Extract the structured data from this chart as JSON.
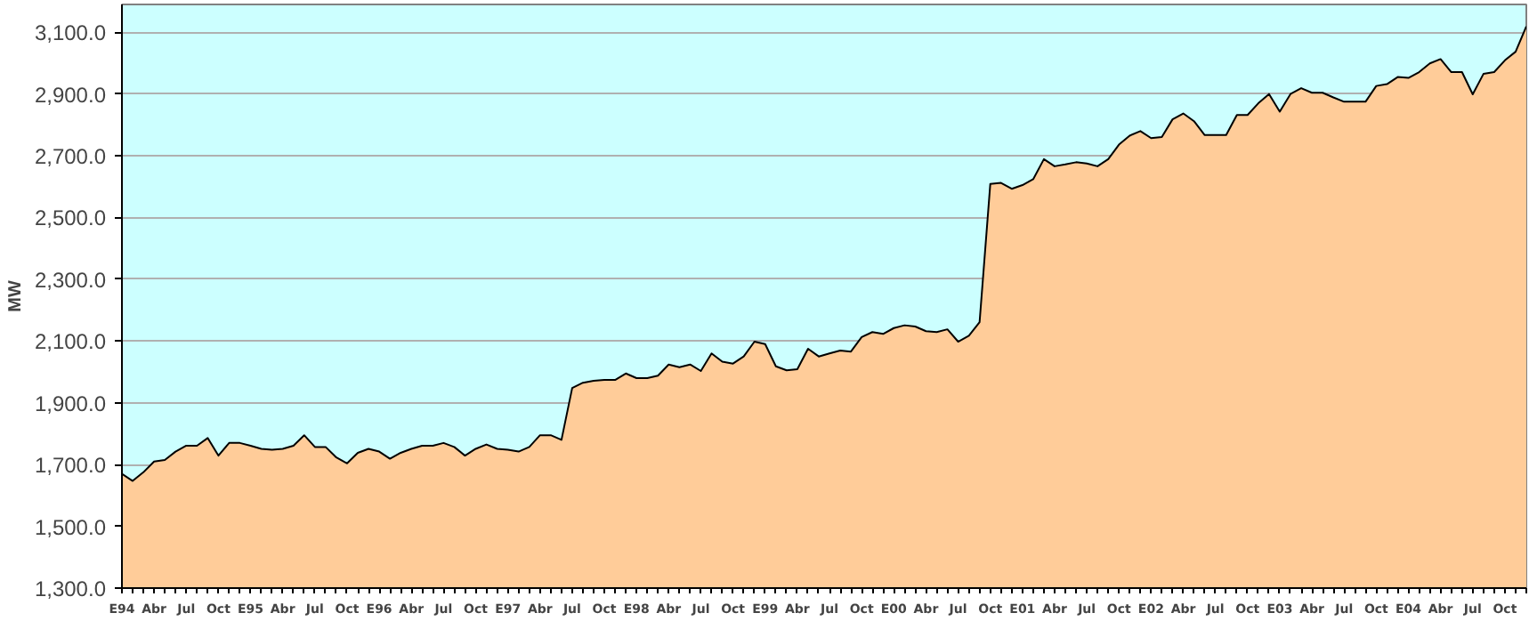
{
  "chart_data": {
    "type": "area",
    "ylabel": "MW",
    "categories": [
      "E94",
      null,
      null,
      "Abr",
      null,
      null,
      "Jul",
      null,
      null,
      "Oct",
      null,
      null,
      "E95",
      null,
      null,
      "Abr",
      null,
      null,
      "Jul",
      null,
      null,
      "Oct",
      null,
      null,
      "E96",
      null,
      null,
      "Abr",
      null,
      null,
      "Jul",
      null,
      null,
      "Oct",
      null,
      null,
      "E97",
      null,
      null,
      "Abr",
      null,
      null,
      "Jul",
      null,
      null,
      "Oct",
      null,
      null,
      "E98",
      null,
      null,
      "Abr",
      null,
      null,
      "Jul",
      null,
      null,
      "Oct",
      null,
      null,
      "E99",
      null,
      null,
      "Abr",
      null,
      null,
      "Jul",
      null,
      null,
      "Oct",
      null,
      null,
      "E00",
      null,
      null,
      "Abr",
      null,
      null,
      "Jul",
      null,
      null,
      "Oct",
      null,
      null,
      "E01",
      null,
      null,
      "Abr",
      null,
      null,
      "Jul",
      null,
      null,
      "Oct",
      null,
      null,
      "E02",
      null,
      null,
      "Abr",
      null,
      null,
      "Jul",
      null,
      null,
      "Oct",
      null,
      null,
      "E03",
      null,
      null,
      "Abr",
      null,
      null,
      "Jul",
      null,
      null,
      "Oct",
      null,
      null,
      "E04",
      null,
      null,
      "Abr",
      null,
      null,
      "Jul",
      null,
      null,
      "Oct",
      null,
      null
    ],
    "series": [
      {
        "color": "#ffcc99",
        "values": [
          1670,
          1647,
          1675,
          1710,
          1715,
          1742,
          1761,
          1761,
          1786,
          1729,
          1770,
          1770,
          1761,
          1751,
          1748,
          1751,
          1761,
          1795,
          1757,
          1757,
          1723,
          1704,
          1738,
          1751,
          1742,
          1719,
          1738,
          1751,
          1761,
          1761,
          1770,
          1757,
          1729,
          1751,
          1765,
          1751,
          1748,
          1742,
          1757,
          1795,
          1795,
          1780,
          1948,
          1965,
          1971,
          1974,
          1974,
          1995,
          1980,
          1980,
          1988,
          2024,
          2015,
          2024,
          2003,
          2060,
          2033,
          2027,
          2050,
          2098,
          2090,
          2018,
          2005,
          2009,
          2075,
          2050,
          2060,
          2069,
          2066,
          2113,
          2129,
          2123,
          2142,
          2151,
          2147,
          2132,
          2129,
          2138,
          2098,
          2117,
          2161,
          2609,
          2612,
          2593,
          2605,
          2624,
          2689,
          2666,
          2672,
          2679,
          2675,
          2666,
          2689,
          2736,
          2765,
          2780,
          2757,
          2761,
          2818,
          2837,
          2812,
          2767,
          2767,
          2767,
          2832,
          2832,
          2870,
          2900,
          2843,
          2900,
          2919,
          2904,
          2904,
          2889,
          2875,
          2875,
          2875,
          2926,
          2932,
          2955,
          2952,
          2971,
          2999,
          3013,
          2971,
          2971,
          2899,
          2965,
          2971,
          3009,
          3037,
          3119
        ]
      }
    ],
    "ylim": [
      1300,
      3190
    ],
    "yticks": [
      {
        "value": 1300,
        "label": "1,300.0"
      },
      {
        "value": 1500,
        "label": "1,500.0"
      },
      {
        "value": 1700,
        "label": "1,700.0"
      },
      {
        "value": 1900,
        "label": "1,900.0"
      },
      {
        "value": 2100,
        "label": "2,100.0"
      },
      {
        "value": 2300,
        "label": "2,300.0"
      },
      {
        "value": 2500,
        "label": "2,500.0"
      },
      {
        "value": 2700,
        "label": "2,700.0"
      },
      {
        "value": 2900,
        "label": "2,900.0"
      },
      {
        "value": 3100,
        "label": "3,100.0"
      }
    ],
    "grid": "y"
  }
}
